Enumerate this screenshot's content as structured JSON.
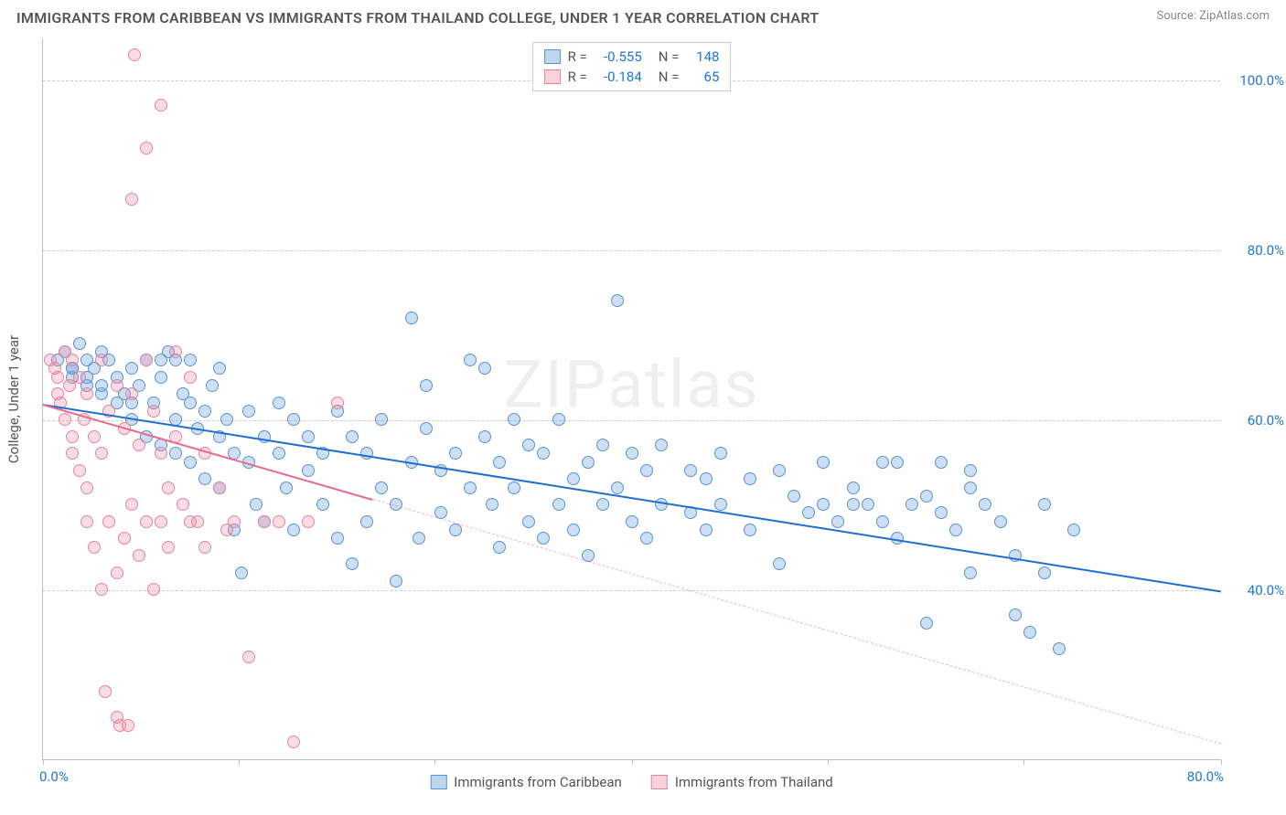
{
  "title": "IMMIGRANTS FROM CARIBBEAN VS IMMIGRANTS FROM THAILAND COLLEGE, UNDER 1 YEAR CORRELATION CHART",
  "source": "Source: ZipAtlas.com",
  "watermark": "ZIPatlas",
  "ylabel": "College, Under 1 year",
  "chart": {
    "type": "scatter",
    "background_color": "#ffffff",
    "grid_color": "#cccccc",
    "axis_color": "#bbbbbb",
    "tick_text_color": "#2176d2",
    "label_text_color": "#555555",
    "xlim": [
      0,
      80
    ],
    "ylim": [
      20,
      105
    ],
    "yticks": [
      40,
      60,
      80,
      100
    ],
    "ytick_labels": [
      "40.0%",
      "60.0%",
      "80.0%",
      "100.0%"
    ],
    "xticks": [
      0,
      13.3,
      26.6,
      40,
      53.3,
      66.6,
      80
    ],
    "xtick_left_label": "0.0%",
    "xtick_right_label": "80.0%",
    "marker_radius": 7,
    "marker_stroke_width": 1.2
  },
  "series": [
    {
      "name": "Immigrants from Caribbean",
      "fill_color": "rgba(108,162,220,0.35)",
      "stroke_color": "#5a94cf",
      "trend": {
        "y_at_xmin": 62,
        "y_at_xmax": 40,
        "color": "#1f6fd1",
        "width": 2.5,
        "dash": "none",
        "x_end_frac": 1.0
      },
      "R": "-0.555",
      "N": "148",
      "swatch_fill": "rgba(108,162,220,0.45)",
      "swatch_border": "#5a94cf",
      "points": [
        [
          1,
          67
        ],
        [
          1.5,
          68
        ],
        [
          2,
          66
        ],
        [
          2,
          65
        ],
        [
          2.5,
          69
        ],
        [
          3,
          67
        ],
        [
          3,
          64
        ],
        [
          3.5,
          66
        ],
        [
          4,
          68
        ],
        [
          4,
          63
        ],
        [
          4.5,
          67
        ],
        [
          5,
          65
        ],
        [
          5,
          62
        ],
        [
          5.5,
          63
        ],
        [
          6,
          66
        ],
        [
          6,
          60
        ],
        [
          6.5,
          64
        ],
        [
          7,
          67
        ],
        [
          7,
          58
        ],
        [
          7.5,
          62
        ],
        [
          8,
          65
        ],
        [
          8,
          57
        ],
        [
          8.5,
          68
        ],
        [
          9,
          60
        ],
        [
          9,
          56
        ],
        [
          9.5,
          63
        ],
        [
          10,
          62
        ],
        [
          10,
          55
        ],
        [
          10.5,
          59
        ],
        [
          11,
          61
        ],
        [
          11,
          53
        ],
        [
          11.5,
          64
        ],
        [
          12,
          58
        ],
        [
          12,
          52
        ],
        [
          12.5,
          60
        ],
        [
          13,
          56
        ],
        [
          13,
          47
        ],
        [
          13.5,
          42
        ],
        [
          14,
          61
        ],
        [
          14,
          55
        ],
        [
          14.5,
          50
        ],
        [
          15,
          58
        ],
        [
          15,
          48
        ],
        [
          16,
          62
        ],
        [
          16,
          56
        ],
        [
          16.5,
          52
        ],
        [
          17,
          60
        ],
        [
          17,
          47
        ],
        [
          18,
          58
        ],
        [
          18,
          54
        ],
        [
          19,
          56
        ],
        [
          19,
          50
        ],
        [
          20,
          61
        ],
        [
          20,
          46
        ],
        [
          21,
          58
        ],
        [
          21,
          43
        ],
        [
          22,
          56
        ],
        [
          22,
          48
        ],
        [
          23,
          60
        ],
        [
          23,
          52
        ],
        [
          24,
          50
        ],
        [
          24,
          41
        ],
        [
          25,
          72
        ],
        [
          25,
          55
        ],
        [
          25.5,
          46
        ],
        [
          26,
          64
        ],
        [
          26,
          59
        ],
        [
          27,
          54
        ],
        [
          27,
          49
        ],
        [
          28,
          56
        ],
        [
          28,
          47
        ],
        [
          29,
          67
        ],
        [
          29,
          52
        ],
        [
          30,
          66
        ],
        [
          30,
          58
        ],
        [
          30.5,
          50
        ],
        [
          31,
          55
        ],
        [
          31,
          45
        ],
        [
          32,
          60
        ],
        [
          32,
          52
        ],
        [
          33,
          57
        ],
        [
          33,
          48
        ],
        [
          34,
          56
        ],
        [
          34,
          46
        ],
        [
          35,
          60
        ],
        [
          35,
          50
        ],
        [
          36,
          53
        ],
        [
          36,
          47
        ],
        [
          37,
          55
        ],
        [
          37,
          44
        ],
        [
          38,
          57
        ],
        [
          38,
          50
        ],
        [
          39,
          74
        ],
        [
          39,
          52
        ],
        [
          40,
          56
        ],
        [
          40,
          48
        ],
        [
          41,
          54
        ],
        [
          41,
          46
        ],
        [
          42,
          57
        ],
        [
          42,
          50
        ],
        [
          44,
          54
        ],
        [
          44,
          49
        ],
        [
          45,
          53
        ],
        [
          45,
          47
        ],
        [
          46,
          56
        ],
        [
          46,
          50
        ],
        [
          48,
          53
        ],
        [
          48,
          47
        ],
        [
          50,
          54
        ],
        [
          50,
          43
        ],
        [
          51,
          51
        ],
        [
          52,
          49
        ],
        [
          53,
          55
        ],
        [
          54,
          48
        ],
        [
          55,
          52
        ],
        [
          56,
          50
        ],
        [
          57,
          48
        ],
        [
          58,
          55
        ],
        [
          58,
          46
        ],
        [
          60,
          51
        ],
        [
          60,
          36
        ],
        [
          61,
          49
        ],
        [
          62,
          47
        ],
        [
          63,
          52
        ],
        [
          63,
          42
        ],
        [
          64,
          50
        ],
        [
          65,
          48
        ],
        [
          66,
          44
        ],
        [
          66,
          37
        ],
        [
          67,
          35
        ],
        [
          68,
          50
        ],
        [
          68,
          42
        ],
        [
          69,
          33
        ],
        [
          70,
          47
        ],
        [
          61,
          55
        ],
        [
          63,
          54
        ],
        [
          57,
          55
        ],
        [
          59,
          50
        ],
        [
          53,
          50
        ],
        [
          55,
          50
        ],
        [
          8,
          67
        ],
        [
          9,
          67
        ],
        [
          10,
          67
        ],
        [
          12,
          66
        ],
        [
          6,
          62
        ],
        [
          4,
          64
        ],
        [
          3,
          65
        ],
        [
          2,
          66
        ]
      ]
    },
    {
      "name": "Immigrants from Thailand",
      "fill_color": "rgba(240,140,165,0.30)",
      "stroke_color": "#e484a1",
      "trend": {
        "y_at_xmin": 62,
        "y_at_xmax": 22,
        "color": "#e86b8f",
        "width": 2,
        "dash": "none",
        "x_end_frac": 0.28,
        "extend_dash": true,
        "dash_color": "rgba(232,107,143,0.5)"
      },
      "R": "-0.184",
      "N": "65",
      "swatch_fill": "rgba(240,140,165,0.40)",
      "swatch_border": "#e484a1",
      "points": [
        [
          0.5,
          67
        ],
        [
          0.8,
          66
        ],
        [
          1,
          65
        ],
        [
          1,
          63
        ],
        [
          1.2,
          62
        ],
        [
          1.5,
          68
        ],
        [
          1.5,
          60
        ],
        [
          1.8,
          64
        ],
        [
          2,
          67
        ],
        [
          2,
          58
        ],
        [
          2,
          56
        ],
        [
          2.5,
          65
        ],
        [
          2.5,
          54
        ],
        [
          2.8,
          60
        ],
        [
          3,
          63
        ],
        [
          3,
          52
        ],
        [
          3,
          48
        ],
        [
          3.5,
          58
        ],
        [
          3.5,
          45
        ],
        [
          4,
          67
        ],
        [
          4,
          56
        ],
        [
          4,
          40
        ],
        [
          4.2,
          28
        ],
        [
          4.5,
          61
        ],
        [
          4.5,
          48
        ],
        [
          5,
          64
        ],
        [
          5,
          42
        ],
        [
          5,
          25
        ],
        [
          5.2,
          24
        ],
        [
          5.5,
          59
        ],
        [
          5.5,
          46
        ],
        [
          5.8,
          24
        ],
        [
          6,
          63
        ],
        [
          6,
          50
        ],
        [
          6,
          86
        ],
        [
          6.2,
          103
        ],
        [
          6.5,
          57
        ],
        [
          6.5,
          44
        ],
        [
          7,
          67
        ],
        [
          7,
          92
        ],
        [
          7,
          48
        ],
        [
          7.5,
          61
        ],
        [
          7.5,
          40
        ],
        [
          8,
          97
        ],
        [
          8,
          56
        ],
        [
          8,
          48
        ],
        [
          8.5,
          52
        ],
        [
          8.5,
          45
        ],
        [
          9,
          68
        ],
        [
          9,
          58
        ],
        [
          9.5,
          50
        ],
        [
          10,
          65
        ],
        [
          10,
          48
        ],
        [
          10.5,
          48
        ],
        [
          11,
          56
        ],
        [
          11,
          45
        ],
        [
          12,
          52
        ],
        [
          12.5,
          47
        ],
        [
          13,
          48
        ],
        [
          14,
          32
        ],
        [
          15,
          48
        ],
        [
          16,
          48
        ],
        [
          17,
          22
        ],
        [
          18,
          48
        ],
        [
          20,
          62
        ]
      ]
    }
  ]
}
